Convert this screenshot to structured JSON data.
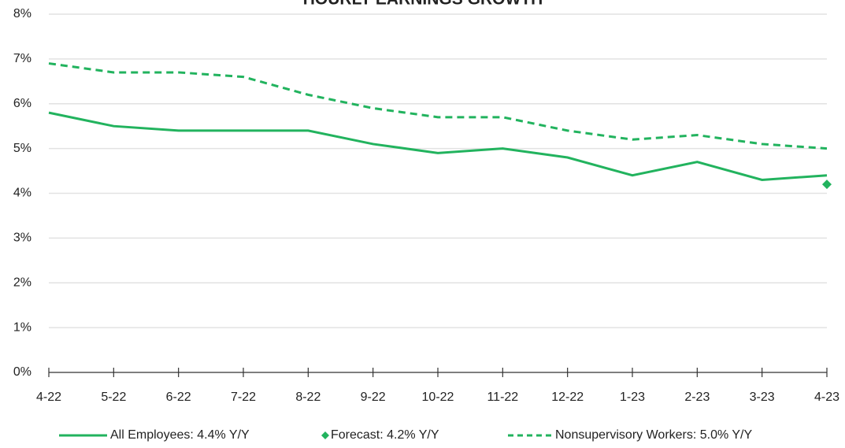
{
  "chart_data": {
    "type": "line",
    "title": "HOURLY EARNINGS GROWTH",
    "categories": [
      "4-22",
      "5-22",
      "6-22",
      "7-22",
      "8-22",
      "9-22",
      "10-22",
      "11-22",
      "12-22",
      "1-23",
      "2-23",
      "3-23",
      "4-23"
    ],
    "series": [
      {
        "name": "All Employees: 4.4% Y/Y",
        "color": "#22b35e",
        "style": "solid",
        "values": [
          5.8,
          5.5,
          5.4,
          5.4,
          5.4,
          5.1,
          4.9,
          5.0,
          4.8,
          4.4,
          4.7,
          4.3,
          4.4
        ]
      },
      {
        "name": "Forecast: 4.2% Y/Y",
        "color": "#22b35e",
        "style": "diamond",
        "values": [
          null,
          null,
          null,
          null,
          null,
          null,
          null,
          null,
          null,
          null,
          null,
          null,
          4.2
        ]
      },
      {
        "name": "Nonsupervisory Workers: 5.0% Y/Y",
        "color": "#22b35e",
        "style": "dashed",
        "values": [
          6.9,
          6.7,
          6.7,
          6.6,
          6.2,
          5.9,
          5.7,
          5.7,
          5.4,
          5.2,
          5.3,
          5.1,
          5.0
        ]
      }
    ],
    "ylim": [
      0,
      8
    ],
    "yticks": [
      {
        "value": 0,
        "label": "0%"
      },
      {
        "value": 1,
        "label": "1%"
      },
      {
        "value": 2,
        "label": "2%"
      },
      {
        "value": 3,
        "label": "3%"
      },
      {
        "value": 4,
        "label": "4%"
      },
      {
        "value": 5,
        "label": "5%"
      },
      {
        "value": 6,
        "label": "6%"
      },
      {
        "value": 7,
        "label": "7%"
      },
      {
        "value": 8,
        "label": "8%"
      }
    ],
    "grid": true,
    "legend": "bottom"
  }
}
